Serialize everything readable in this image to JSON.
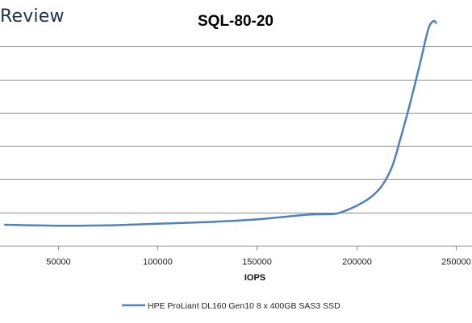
{
  "brand": {
    "text": "Review"
  },
  "chart_data": {
    "type": "line",
    "title": "SQL-80-20",
    "xlabel": "IOPS",
    "ylabel": "",
    "xlim": [
      23000,
      258000
    ],
    "ylim": [
      0,
      7
    ],
    "x_ticks": [
      50000,
      100000,
      150000,
      200000,
      250000
    ],
    "x_tick_labels": [
      "50000",
      "100000",
      "150000",
      "200000",
      "250000"
    ],
    "y_gridlines": [
      1,
      2,
      3,
      4,
      5,
      6
    ],
    "y_tick_labels_visible": false,
    "grid": true,
    "legend_position": "bottom",
    "series": [
      {
        "name": "HPE ProLiant DL160 Gen10 8 x 400GB SAS3 SSD",
        "color": "#4f81bd",
        "points": [
          [
            23500,
            0.63
          ],
          [
            50000,
            0.6
          ],
          [
            75000,
            0.61
          ],
          [
            100000,
            0.66
          ],
          [
            125000,
            0.71
          ],
          [
            150000,
            0.79
          ],
          [
            175000,
            0.93
          ],
          [
            188000,
            0.95
          ],
          [
            193000,
            1.02
          ],
          [
            200000,
            1.2
          ],
          [
            207000,
            1.45
          ],
          [
            213000,
            1.82
          ],
          [
            218000,
            2.4
          ],
          [
            222000,
            3.2
          ],
          [
            227000,
            4.3
          ],
          [
            232000,
            5.5
          ],
          [
            236000,
            6.5
          ],
          [
            238500,
            6.75
          ],
          [
            240000,
            6.7
          ]
        ]
      }
    ]
  }
}
